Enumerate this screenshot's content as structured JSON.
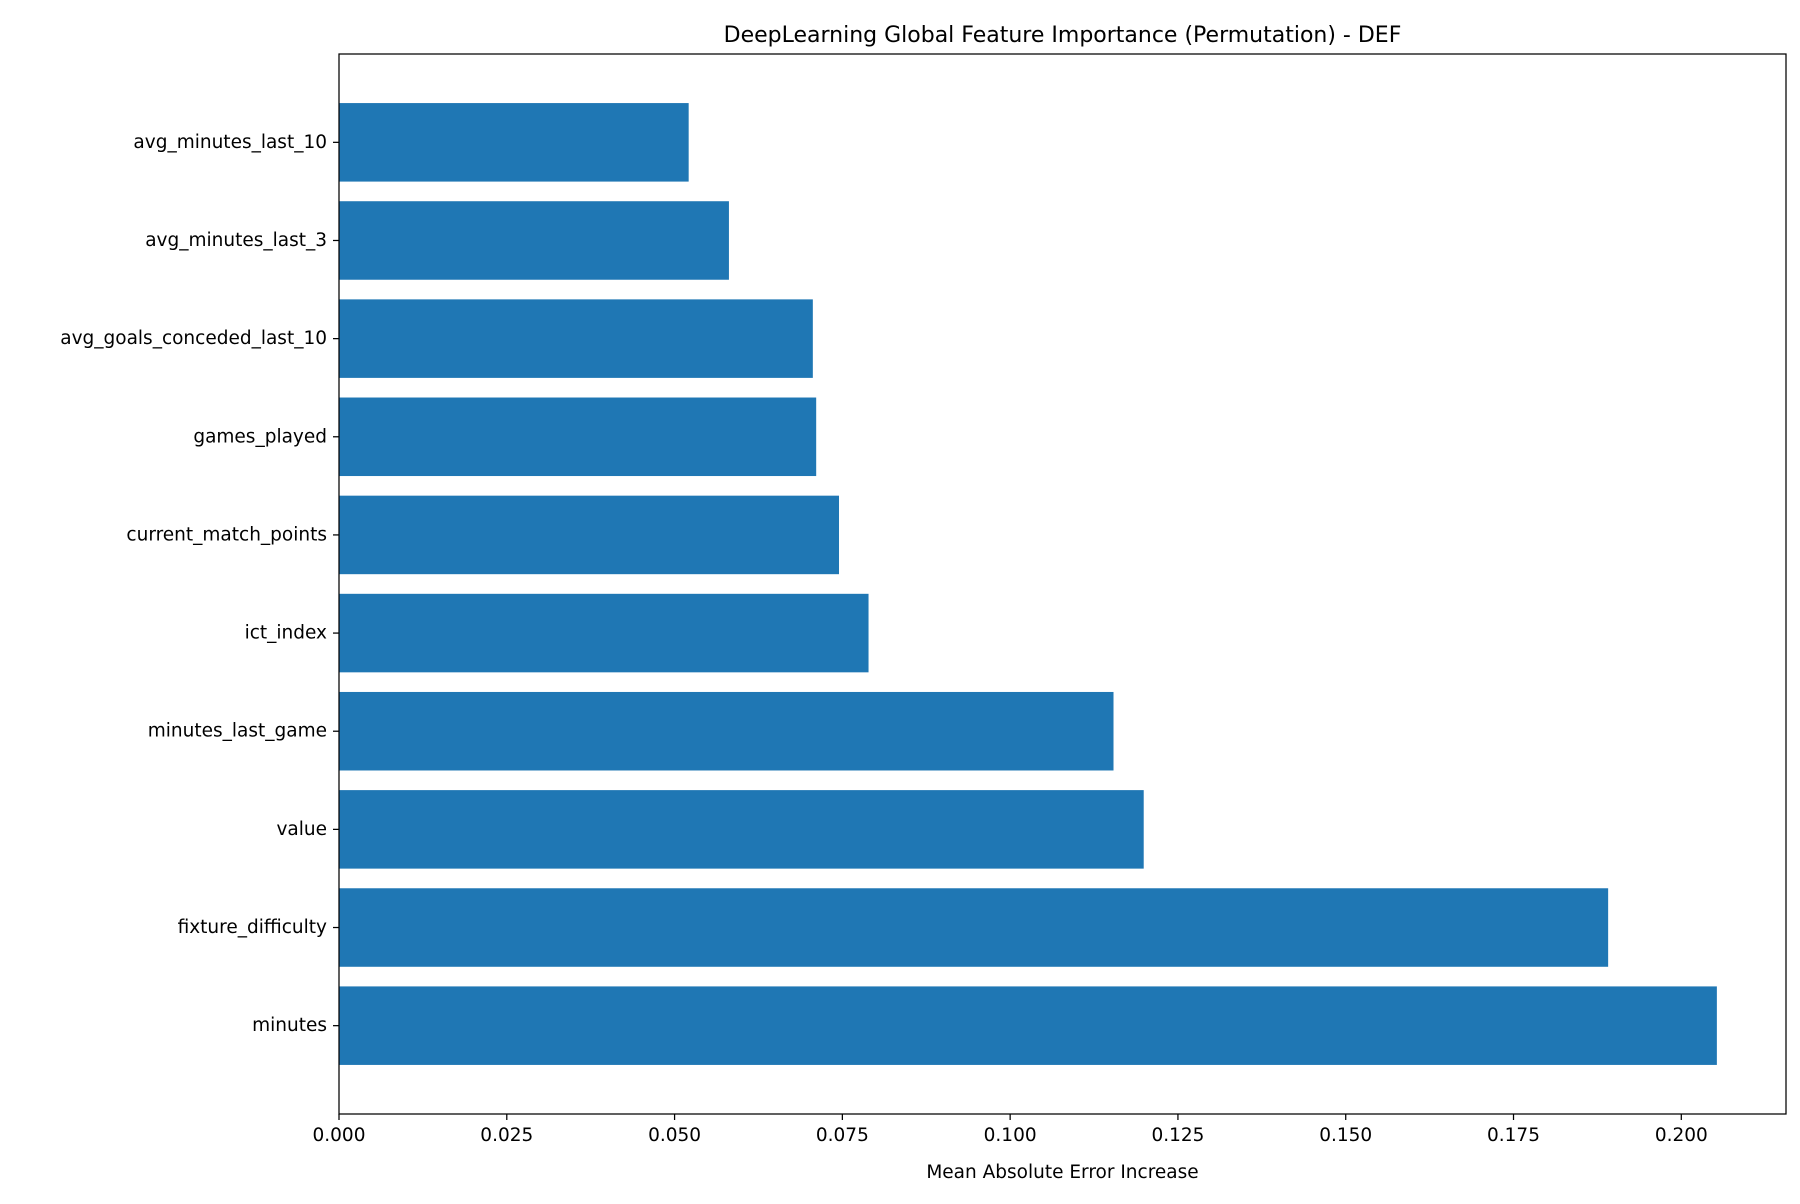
{
  "chart_data": {
    "type": "bar",
    "orientation": "horizontal",
    "title": "DeepLearning Global Feature Importance (Permutation) - DEF",
    "xlabel": "Mean Absolute Error Increase",
    "ylabel": "",
    "categories": [
      "minutes",
      "fixture_difficulty",
      "value",
      "minutes_last_game",
      "ict_index",
      "current_match_points",
      "games_played",
      "avg_goals_conceded_last_10",
      "avg_minutes_last_3",
      "avg_minutes_last_10"
    ],
    "values": [
      0.2053,
      0.1891,
      0.1199,
      0.1154,
      0.0789,
      0.0745,
      0.0711,
      0.0706,
      0.0581,
      0.0521
    ],
    "xlim": [
      0,
      0.2156
    ],
    "xticks": [
      0.0,
      0.025,
      0.05,
      0.075,
      0.1,
      0.125,
      0.15,
      0.175,
      0.2
    ],
    "xtick_labels": [
      "0.000",
      "0.025",
      "0.050",
      "0.075",
      "0.100",
      "0.125",
      "0.150",
      "0.175",
      "0.200"
    ],
    "grid": false,
    "bar_color": "#1f77b4"
  }
}
